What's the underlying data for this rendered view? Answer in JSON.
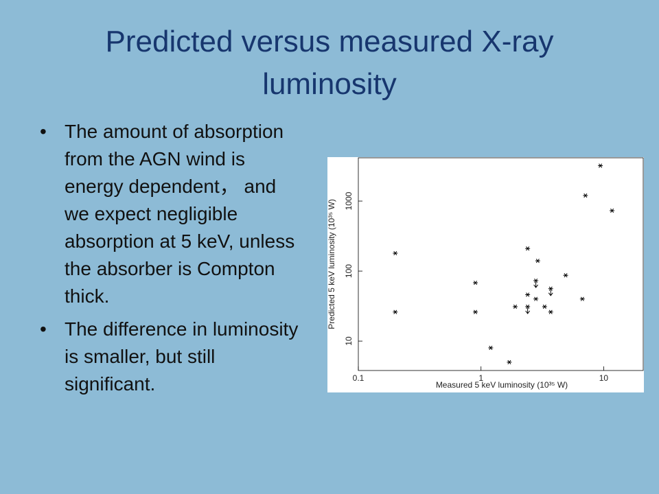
{
  "title": "Predicted versus measured X-ray luminosity",
  "bullets": [
    "The amount of absorption from the AGN wind is energy dependent， and we expect negligible absorption at 5 keV, unless the absorber is Compton thick.",
    "The difference in luminosity is smaller, but still significant."
  ],
  "chart_data": {
    "type": "scatter",
    "x_label": "Measured 5 keV luminosity (10³⁵ W)",
    "y_label": "Predicted 5 keV luminosity (10³⁵ W)",
    "x": [
      0.2,
      0.2,
      0.9,
      0.9,
      1.2,
      1.7,
      1.9,
      2.4,
      2.4,
      2.4,
      2.8,
      2.8,
      2.9,
      3.3,
      3.7,
      3.7,
      4.9,
      6.7,
      7.1,
      9.4,
      11.7
    ],
    "values": [
      180,
      26,
      68,
      26,
      8,
      5,
      31,
      210,
      46,
      31,
      40,
      73,
      140,
      31,
      56,
      26,
      87,
      40,
      1200,
      3200,
      730
    ],
    "upper_limits": [
      false,
      false,
      false,
      false,
      false,
      false,
      false,
      false,
      false,
      true,
      false,
      true,
      false,
      false,
      true,
      false,
      false,
      false,
      false,
      false,
      false
    ],
    "xlim": [
      0.1,
      21
    ],
    "ylim": [
      3.8,
      4150
    ],
    "xticks": [
      0.1,
      1,
      10
    ],
    "yticks": [
      10,
      100,
      1000
    ],
    "xlog": true,
    "ylog": true,
    "color": "#000000"
  }
}
